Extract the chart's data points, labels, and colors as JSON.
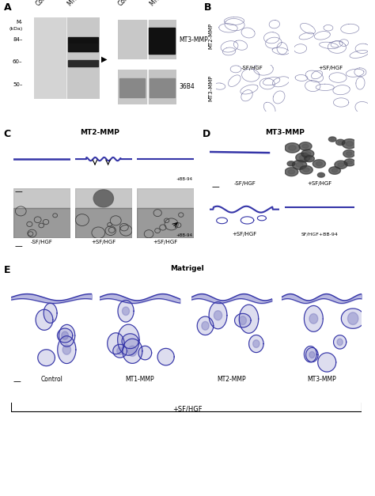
{
  "fig_width": 4.74,
  "fig_height": 6.27,
  "bg_color": "#ffffff",
  "panel_A_label": "A",
  "panel_B_label": "B",
  "panel_C_label": "C",
  "panel_D_label": "D",
  "panel_E_label": "E",
  "label_A_mw": [
    "84-",
    "60-",
    "50-"
  ],
  "label_A_right": [
    "MT3-MMP",
    "36B4"
  ],
  "label_B_rows": [
    "MT2-MMP",
    "MT3-MMP"
  ],
  "label_B_cols": [
    "-SF/HGF",
    "+SF/HGF"
  ],
  "label_C_title": "MT2-MMP",
  "label_C_cols": [
    "-SF/HGF",
    "+SF/HGF",
    "+SF/HGF"
  ],
  "label_D_title": "MT3-MMP",
  "label_D_row1": [
    "-SF/HGF",
    "+SF/HGF"
  ],
  "label_D_row2": [
    "+SF/HGF",
    "SF/HGF+BB-94"
  ],
  "label_E_title": "Matrigel",
  "label_E_cols": [
    "Control",
    "MT1-MMP",
    "MT2-MMP",
    "MT3-MMP"
  ],
  "label_E_bottom": "+SF/HGF",
  "blot_left_bg": "#e0e0e0",
  "blot_lane_ctrl": "#cccccc",
  "blot_lane_mmp": "#c0c0c0",
  "blot_band_dark": "#1a1a1a",
  "blot_band_mid": "#444444",
  "cell_bg1": "#c8cce8",
  "cell_bg2": "#bcc0e0",
  "lm_bg": "#e8edf5",
  "em_bg": "#909090",
  "em_bg2": "#808080",
  "matrigel_bg": "#dde6f0",
  "blue_line": "#3535a8",
  "dark_invasion": "#b8b4a4"
}
